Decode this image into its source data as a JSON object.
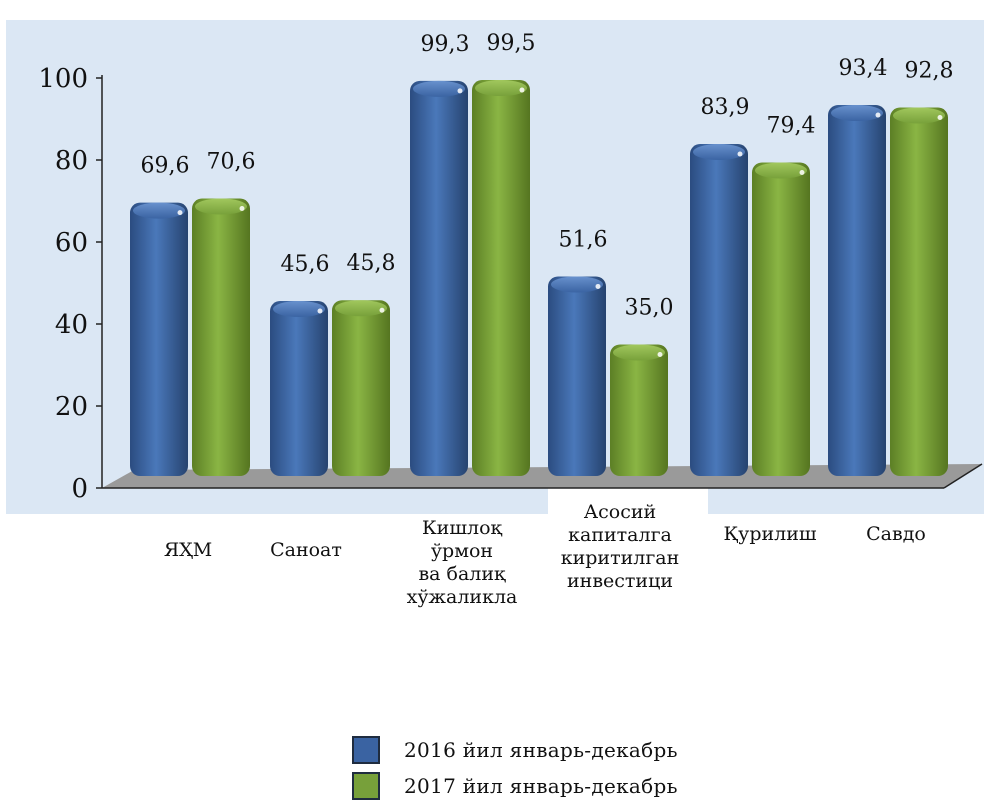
{
  "colors": {
    "series_2016": "#3a63a2",
    "series_2017": "#77a03a",
    "plot_bg": "#dbe7f4",
    "floor": "#9a9a9a"
  },
  "chart_data": {
    "type": "bar",
    "categories": [
      "ЯҲМ",
      "Саноат",
      "Кишлоқ\nўрмон\nва балиқ\nхўжаликла",
      "Асосий\nкапиталга\nкиритилган\nинвестици",
      "Қурилиш",
      "Савдо"
    ],
    "series": [
      {
        "name": "2016 йил январь-декабрь",
        "values": [
          69.6,
          45.6,
          99.3,
          51.6,
          83.9,
          93.4
        ],
        "labels": [
          "69,6",
          "45,6",
          "99,3",
          "51,6",
          "83,9",
          "93,4"
        ],
        "color": "#3a63a2"
      },
      {
        "name": "2017 йил январь-декабрь",
        "values": [
          70.6,
          45.8,
          99.5,
          35.0,
          79.4,
          92.8
        ],
        "labels": [
          "70,6",
          "45,8",
          "99,5",
          "35,0",
          "79,4",
          "92,8"
        ],
        "color": "#77a03a"
      }
    ],
    "yticks": [
      "0",
      "20",
      "40",
      "60",
      "80",
      "100"
    ],
    "ylim": [
      0,
      100
    ],
    "grid": false,
    "legend_position": "bottom-center"
  }
}
